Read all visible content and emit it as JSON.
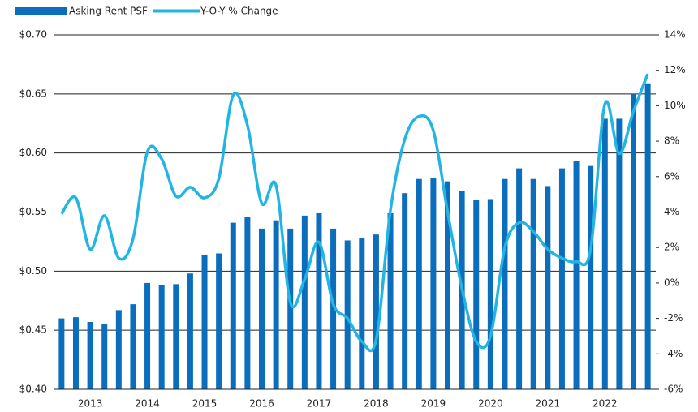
{
  "chart_data": {
    "type": "bar",
    "x": [
      2012.5,
      2012.75,
      2013,
      2013.25,
      2013.5,
      2013.75,
      2014,
      2014.25,
      2014.5,
      2014.75,
      2015,
      2015.25,
      2015.5,
      2015.75,
      2016,
      2016.25,
      2016.5,
      2016.75,
      2017,
      2017.25,
      2017.5,
      2017.75,
      2018,
      2018.25,
      2018.5,
      2018.75,
      2019,
      2019.25,
      2019.5,
      2019.75,
      2020,
      2020.25,
      2020.5,
      2020.75,
      2021,
      2021.25,
      2021.5,
      2021.75,
      2022,
      2022.25,
      2022.5,
      2022.75
    ],
    "xlim": [
      2012.36,
      2022.89
    ],
    "xticks": [
      2013,
      2014,
      2015,
      2016,
      2017,
      2018,
      2019,
      2020,
      2021,
      2022
    ],
    "ylim": [
      0.4,
      0.7
    ],
    "yticks": [
      {
        "value": 0.4,
        "label": "$0.40"
      },
      {
        "value": 0.45,
        "label": "$0.45"
      },
      {
        "value": 0.5,
        "label": "$0.50"
      },
      {
        "value": 0.55,
        "label": "$0.55"
      },
      {
        "value": 0.6,
        "label": "$0.60"
      },
      {
        "value": 0.65,
        "label": "$0.65"
      },
      {
        "value": 0.7,
        "label": "$0.70"
      }
    ],
    "y2lim": [
      -6,
      14
    ],
    "y2ticks": [
      {
        "value": -6,
        "label": "-6%"
      },
      {
        "value": -4,
        "label": "-4%"
      },
      {
        "value": -2,
        "label": "-2%"
      },
      {
        "value": 0,
        "label": "0%"
      },
      {
        "value": 2,
        "label": "2%"
      },
      {
        "value": 4,
        "label": "4%"
      },
      {
        "value": 6,
        "label": "6%"
      },
      {
        "value": 8,
        "label": "8%"
      },
      {
        "value": 10,
        "label": "10%"
      },
      {
        "value": 12,
        "label": "12%"
      },
      {
        "value": 14,
        "label": "14%"
      }
    ],
    "grid": true,
    "legend": "top-left",
    "series": [
      {
        "name": "Asking Rent PSF",
        "type": "bar",
        "color": "#0a6ebd",
        "values": [
          0.46,
          0.461,
          0.457,
          0.455,
          0.467,
          0.472,
          0.49,
          0.488,
          0.489,
          0.498,
          0.514,
          0.515,
          0.541,
          0.546,
          0.536,
          0.543,
          0.536,
          0.547,
          0.549,
          0.536,
          0.526,
          0.528,
          0.531,
          0.549,
          0.566,
          0.578,
          0.579,
          0.576,
          0.568,
          0.56,
          0.561,
          0.578,
          0.587,
          0.578,
          0.572,
          0.587,
          0.593,
          0.589,
          0.629,
          0.629,
          0.65,
          0.659
        ]
      },
      {
        "name": "Y-O-Y % Change",
        "type": "line",
        "axis": "y2",
        "color": "#22b5e3",
        "values": [
          3.9,
          4.8,
          1.9,
          3.8,
          1.4,
          2.5,
          7.4,
          7.0,
          4.9,
          5.4,
          4.8,
          5.9,
          10.6,
          8.9,
          4.5,
          5.5,
          -1.1,
          0.2,
          2.3,
          -1.2,
          -2.0,
          -3.3,
          -3.2,
          4.1,
          8.1,
          9.4,
          8.6,
          4.0,
          -0.3,
          -3.3,
          -3.0,
          2.0,
          3.4,
          2.9,
          1.9,
          1.4,
          1.2,
          1.9,
          10.1,
          7.3,
          9.7,
          11.8
        ]
      }
    ]
  }
}
